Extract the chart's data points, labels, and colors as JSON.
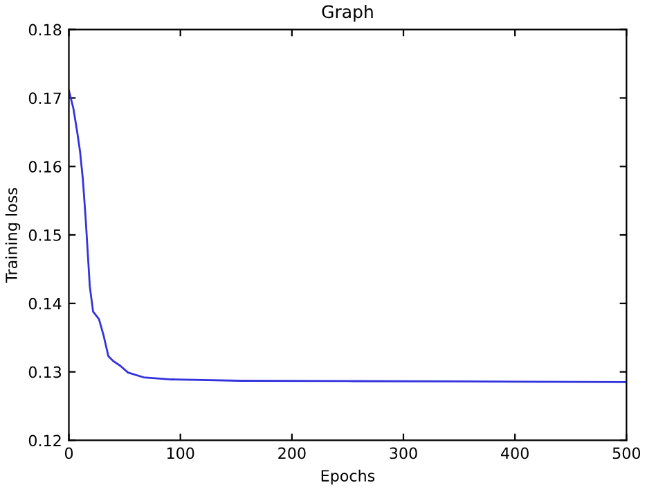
{
  "chart_data": {
    "type": "line",
    "title": "Graph",
    "xlabel": "Epochs",
    "ylabel": "Training loss",
    "x": [
      0,
      4,
      7.5,
      10,
      12.5,
      15,
      16.7,
      18.75,
      21.7,
      27,
      31,
      35.4,
      39.6,
      46,
      53,
      67,
      92,
      154,
      250,
      350,
      500
    ],
    "series": [
      {
        "color": "#3333dd",
        "values": [
          0.1711,
          0.1685,
          0.165,
          0.1622,
          0.1582,
          0.1525,
          0.148,
          0.1425,
          0.1388,
          0.1377,
          0.1354,
          0.1323,
          0.1316,
          0.1309,
          0.1299,
          0.1292,
          0.1289,
          0.1287,
          0.12865,
          0.1286,
          0.1285
        ]
      }
    ],
    "xlim": [
      0,
      500
    ],
    "ylim": [
      0.12,
      0.18
    ],
    "xticks": [
      0,
      100,
      200,
      300,
      400,
      500
    ],
    "yticks": [
      0.12,
      0.13,
      0.14,
      0.15,
      0.16,
      0.17,
      0.18
    ],
    "grid": false,
    "legend": false
  }
}
